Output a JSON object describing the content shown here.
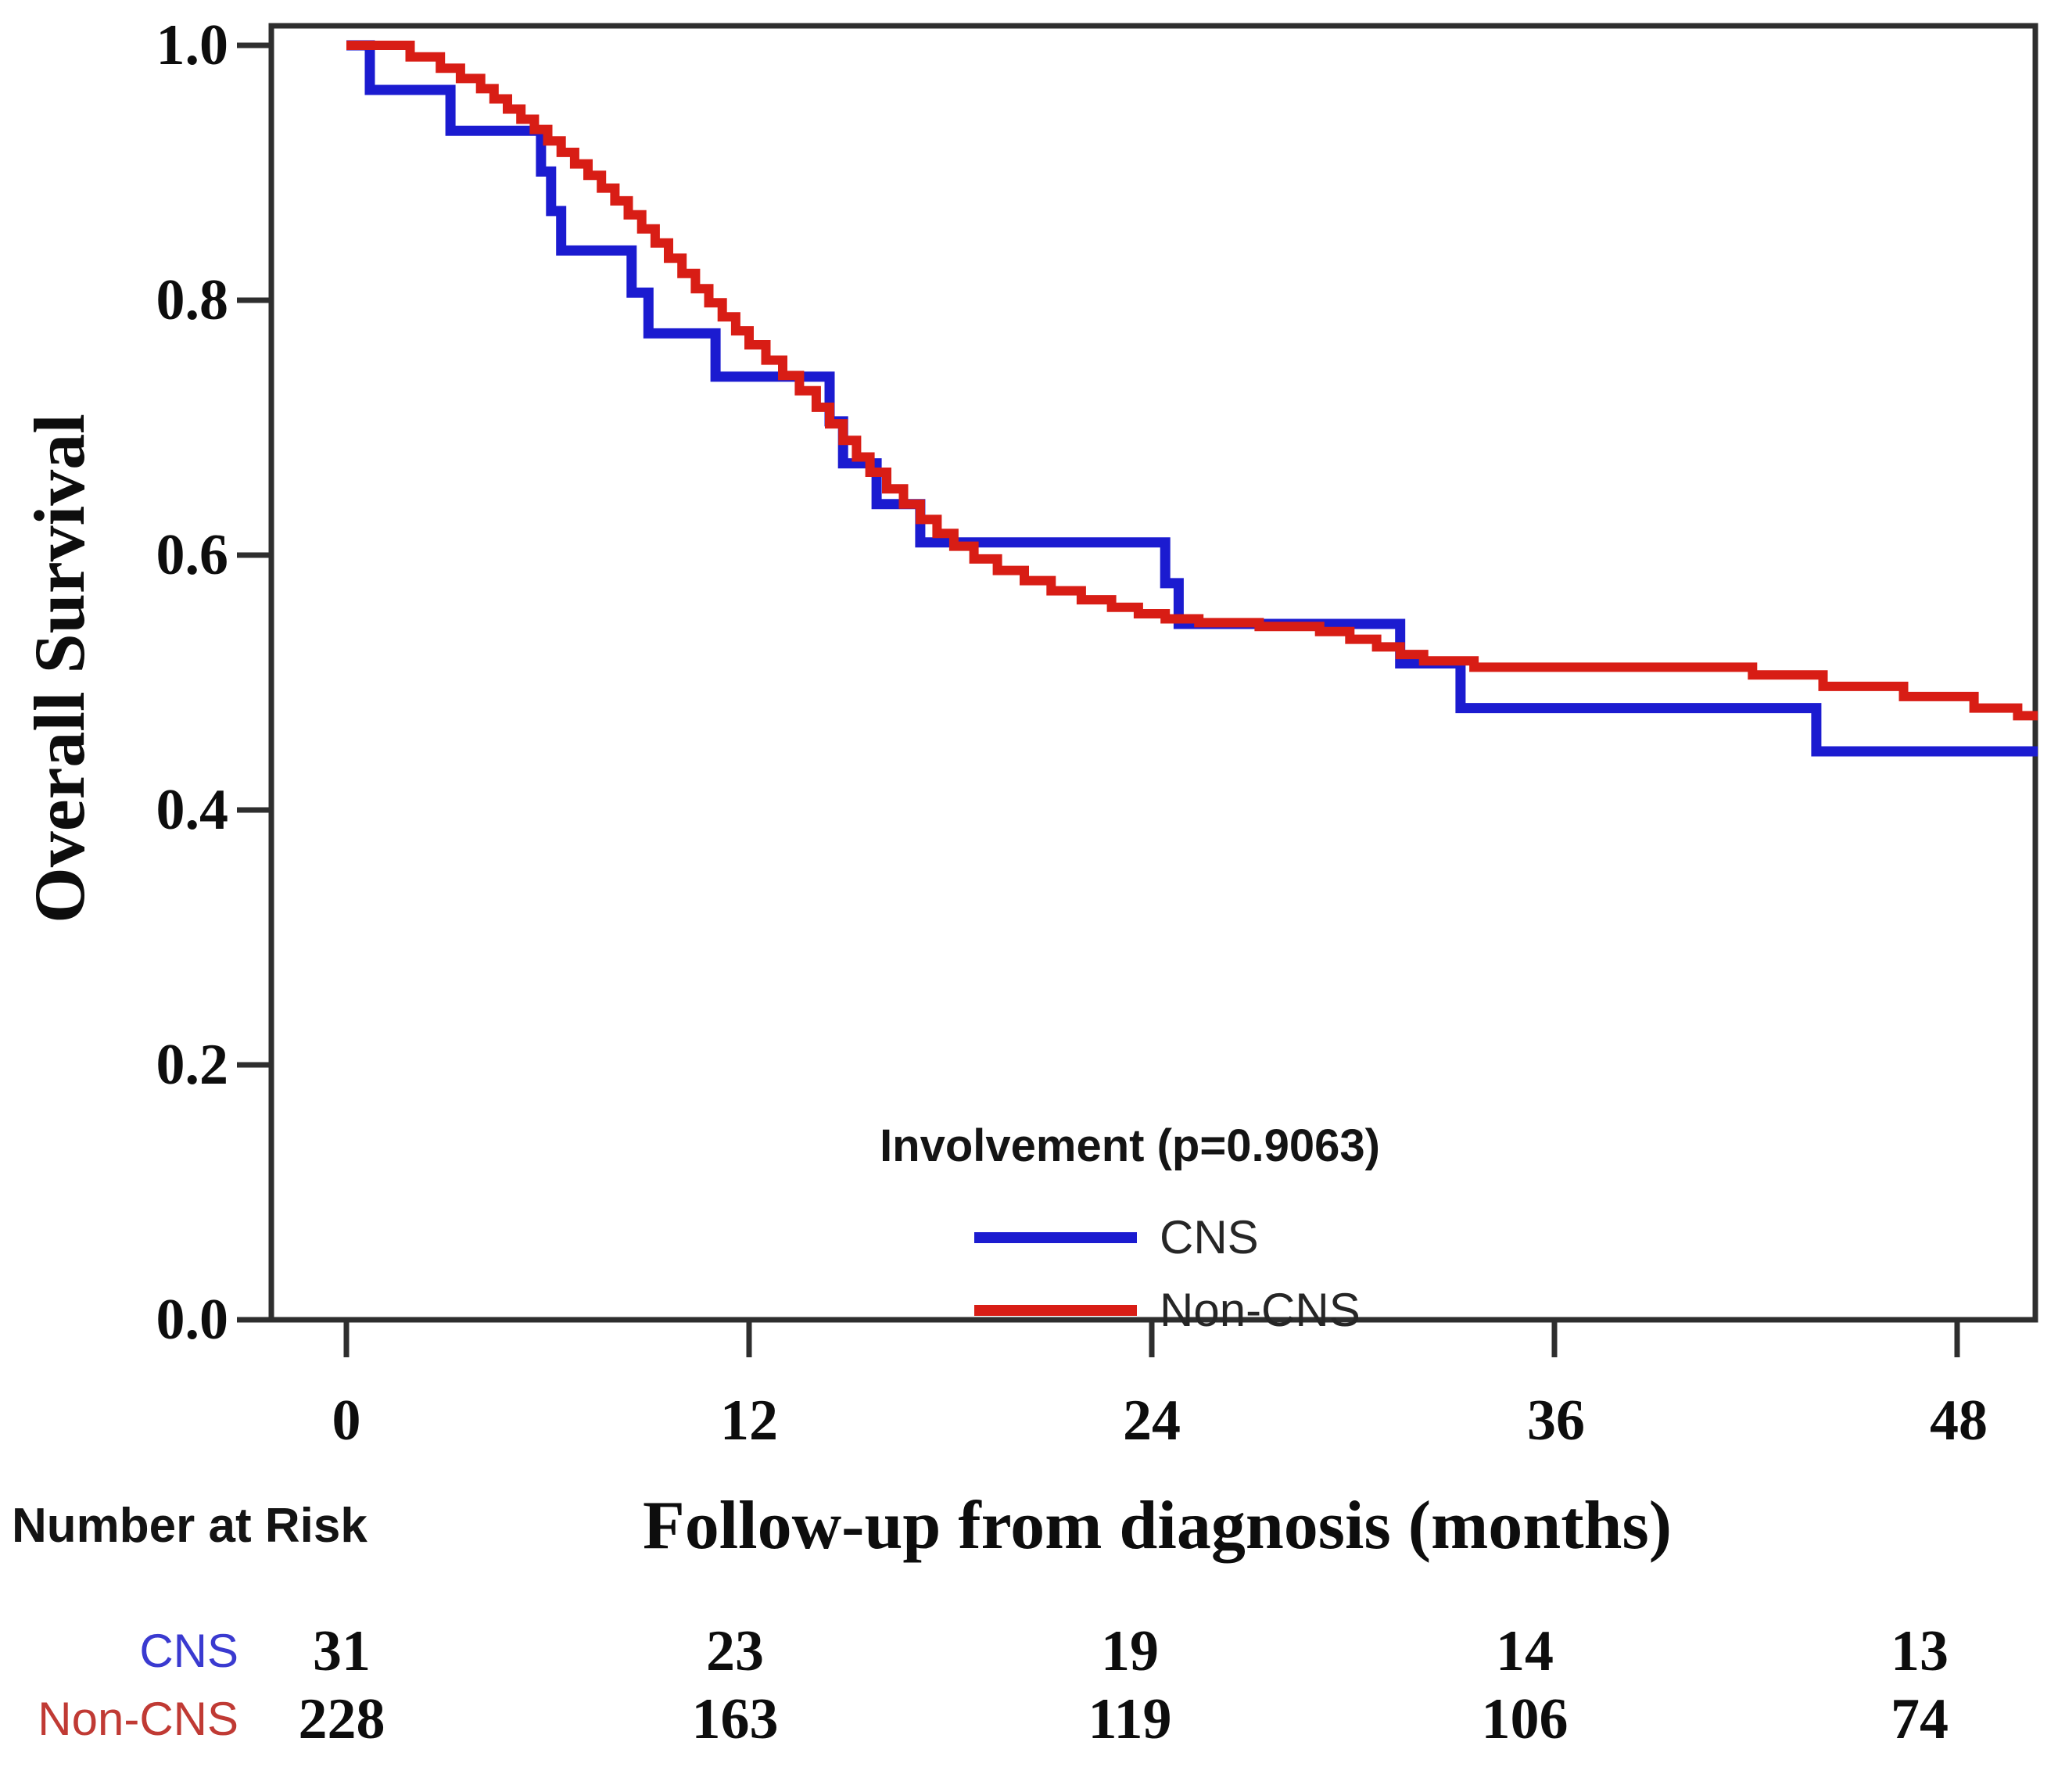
{
  "figure": {
    "y_axis": {
      "title": "Overall Survival",
      "tick_labels": [
        "1.0",
        "0.8",
        "0.6",
        "0.4",
        "0.2",
        "0.0"
      ]
    },
    "x_axis": {
      "title": "Follow-up from diagnosis (months)",
      "tick_labels": [
        "0",
        "12",
        "24",
        "36",
        "48"
      ]
    },
    "legend": {
      "title": "Involvement (p=0.9063)",
      "entries": [
        {
          "label": "CNS",
          "color": "#1b1bd0"
        },
        {
          "label": "Non-CNS",
          "color": "#d81d15"
        }
      ]
    },
    "risk_table": {
      "title": "Number at Risk",
      "rows": [
        {
          "label": "CNS",
          "label_color": "#3a3ad0",
          "values": [
            "31",
            "23",
            "19",
            "14",
            "13"
          ]
        },
        {
          "label": "Non-CNS",
          "label_color": "#c03a34",
          "values": [
            "228",
            "163",
            "119",
            "106",
            "74"
          ]
        }
      ]
    }
  },
  "chart_data": {
    "type": "line",
    "subtype": "kaplan-meier-step",
    "title": "Involvement (p=0.9063)",
    "xlabel": "Follow-up from diagnosis (months)",
    "ylabel": "Overall Survival",
    "xlim": [
      0,
      50.5
    ],
    "ylim": [
      0.0,
      1.0
    ],
    "x_ticks": [
      0,
      12,
      24,
      36,
      48
    ],
    "y_ticks": [
      1.0,
      0.8,
      0.6,
      0.4,
      0.2,
      0.0
    ],
    "grid": false,
    "legend_position": "inside-bottom-center",
    "group_variable": "Involvement",
    "p_value": 0.9063,
    "frame_color": "#2e2e2e",
    "series": [
      {
        "name": "CNS",
        "color": "#1b1bd0",
        "line_width": 13,
        "n_at_risk_at_ticks": [
          31,
          23,
          19,
          14,
          13
        ],
        "end_time": 50.4,
        "steps": [
          [
            0,
            1.0
          ],
          [
            0.7,
            0.965
          ],
          [
            3.1,
            0.933
          ],
          [
            5.8,
            0.901
          ],
          [
            6.1,
            0.87
          ],
          [
            6.4,
            0.839
          ],
          [
            8.5,
            0.806
          ],
          [
            9.0,
            0.774
          ],
          [
            11.0,
            0.74
          ],
          [
            14.4,
            0.705
          ],
          [
            14.8,
            0.672
          ],
          [
            15.8,
            0.64
          ],
          [
            17.1,
            0.61
          ],
          [
            24.4,
            0.578
          ],
          [
            24.8,
            0.546
          ],
          [
            31.4,
            0.515
          ],
          [
            33.2,
            0.48
          ],
          [
            43.8,
            0.446
          ]
        ]
      },
      {
        "name": "Non-CNS",
        "color": "#d81d15",
        "line_width": 12,
        "n_at_risk_at_ticks": [
          228,
          163,
          119,
          106,
          74
        ],
        "end_time": 50.4,
        "steps": [
          [
            0,
            1.0
          ],
          [
            1.9,
            0.991
          ],
          [
            2.8,
            0.982
          ],
          [
            3.4,
            0.974
          ],
          [
            4.0,
            0.966
          ],
          [
            4.4,
            0.958
          ],
          [
            4.8,
            0.95
          ],
          [
            5.2,
            0.942
          ],
          [
            5.6,
            0.934
          ],
          [
            6.0,
            0.925
          ],
          [
            6.4,
            0.916
          ],
          [
            6.8,
            0.907
          ],
          [
            7.2,
            0.898
          ],
          [
            7.6,
            0.888
          ],
          [
            8.0,
            0.878
          ],
          [
            8.4,
            0.867
          ],
          [
            8.8,
            0.856
          ],
          [
            9.2,
            0.845
          ],
          [
            9.6,
            0.833
          ],
          [
            10.0,
            0.821
          ],
          [
            10.4,
            0.809
          ],
          [
            10.8,
            0.798
          ],
          [
            11.2,
            0.787
          ],
          [
            11.6,
            0.776
          ],
          [
            12.0,
            0.765
          ],
          [
            12.5,
            0.753
          ],
          [
            13.0,
            0.741
          ],
          [
            13.5,
            0.729
          ],
          [
            14.0,
            0.716
          ],
          [
            14.4,
            0.703
          ],
          [
            14.8,
            0.69
          ],
          [
            15.2,
            0.677
          ],
          [
            15.6,
            0.665
          ],
          [
            16.1,
            0.652
          ],
          [
            16.6,
            0.64
          ],
          [
            17.1,
            0.628
          ],
          [
            17.6,
            0.617
          ],
          [
            18.1,
            0.607
          ],
          [
            18.7,
            0.597
          ],
          [
            19.4,
            0.588
          ],
          [
            20.2,
            0.58
          ],
          [
            21.0,
            0.572
          ],
          [
            21.9,
            0.565
          ],
          [
            22.8,
            0.559
          ],
          [
            23.6,
            0.554
          ],
          [
            24.4,
            0.55
          ],
          [
            25.4,
            0.547
          ],
          [
            27.2,
            0.544
          ],
          [
            29.0,
            0.54
          ],
          [
            29.9,
            0.534
          ],
          [
            30.7,
            0.528
          ],
          [
            31.4,
            0.522
          ],
          [
            32.1,
            0.517
          ],
          [
            33.6,
            0.512
          ],
          [
            41.9,
            0.506
          ],
          [
            44.0,
            0.497
          ],
          [
            46.4,
            0.489
          ],
          [
            48.5,
            0.48
          ],
          [
            49.8,
            0.474
          ]
        ]
      }
    ]
  }
}
